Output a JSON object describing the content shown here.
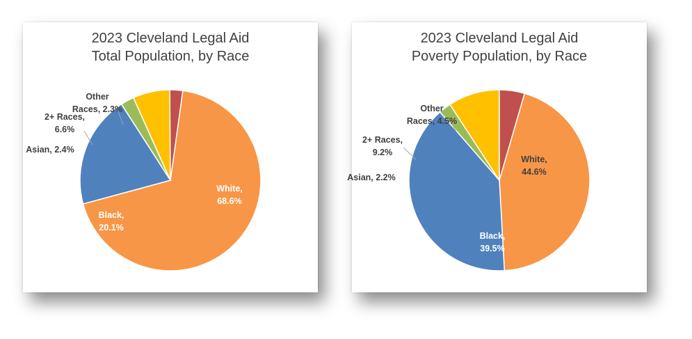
{
  "chart_data": [
    {
      "type": "pie",
      "title_line1": "2023 Cleveland Legal Aid",
      "title_line2": "Total Population, by Race",
      "slices": [
        {
          "name": "White",
          "value": 68.6,
          "label_name": "White,",
          "label_value": "68.6%",
          "color": "#F79646",
          "label_color": "#ffffff"
        },
        {
          "name": "Black",
          "value": 20.1,
          "label_name": "Black,",
          "label_value": "20.1%",
          "color": "#4F81BD",
          "label_color": "#ffffff"
        },
        {
          "name": "Asian",
          "value": 2.4,
          "label_name": "Asian, 2.4%",
          "label_value": "",
          "color": "#9BBB59",
          "label_color": "#404040"
        },
        {
          "name": "2+ Races",
          "value": 6.6,
          "label_name": "2+ Races,",
          "label_value": "6.6%",
          "color": "#FFC000",
          "label_color": "#404040"
        },
        {
          "name": "Other Races",
          "value": 2.3,
          "label_name": "Other",
          "label_value": "Races, 2.3%",
          "color": "#C0504D",
          "label_color": "#404040"
        }
      ]
    },
    {
      "type": "pie",
      "title_line1": "2023 Cleveland Legal Aid",
      "title_line2": "Poverty Population, by Race",
      "slices": [
        {
          "name": "White",
          "value": 44.6,
          "label_name": "White,",
          "label_value": "44.6%",
          "color": "#F79646",
          "label_color": "#404040"
        },
        {
          "name": "Black",
          "value": 39.5,
          "label_name": "Black,",
          "label_value": "39.5%",
          "color": "#4F81BD",
          "label_color": "#ffffff"
        },
        {
          "name": "Asian",
          "value": 2.2,
          "label_name": "Asian, 2.2%",
          "label_value": "",
          "color": "#9BBB59",
          "label_color": "#404040"
        },
        {
          "name": "2+ Races",
          "value": 9.2,
          "label_name": "2+ Races,",
          "label_value": "9.2%",
          "color": "#FFC000",
          "label_color": "#404040"
        },
        {
          "name": "Other Races",
          "value": 4.5,
          "label_name": "Other",
          "label_value": "Races, 4.5%",
          "color": "#C0504D",
          "label_color": "#404040"
        }
      ]
    }
  ]
}
